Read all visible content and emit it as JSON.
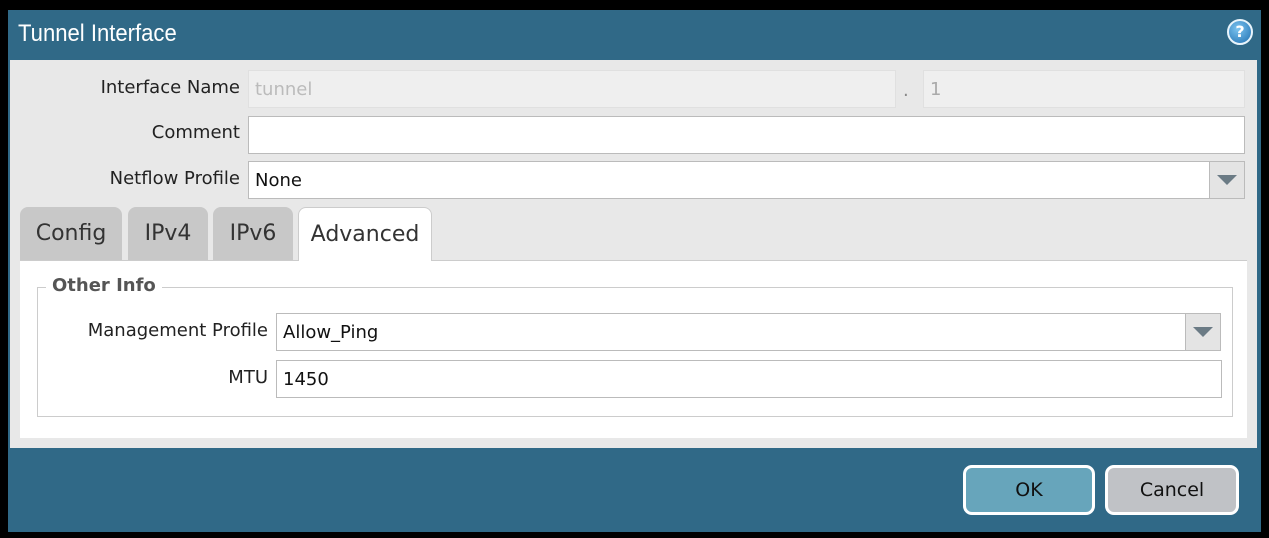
{
  "dialog": {
    "title": "Tunnel Interface",
    "help_icon": "help-icon"
  },
  "form": {
    "interface_name_label": "Interface Name",
    "interface_name_value": "tunnel",
    "separator": ".",
    "interface_unit_value": "1",
    "comment_label": "Comment",
    "comment_value": "",
    "netflow_label": "Netflow Profile",
    "netflow_value": "None"
  },
  "tabs": [
    {
      "label": "Config"
    },
    {
      "label": "IPv4"
    },
    {
      "label": "IPv6"
    },
    {
      "label": "Advanced",
      "active": true
    }
  ],
  "other_info": {
    "legend": "Other Info",
    "mgmt_label": "Management Profile",
    "mgmt_value": "Allow_Ping",
    "mtu_label": "MTU",
    "mtu_value": "1450"
  },
  "buttons": {
    "ok": "OK",
    "cancel": "Cancel"
  },
  "colors": {
    "titlebar": "#306987",
    "ok_button": "#67a5bb",
    "cancel_button": "#c0c2c6"
  }
}
